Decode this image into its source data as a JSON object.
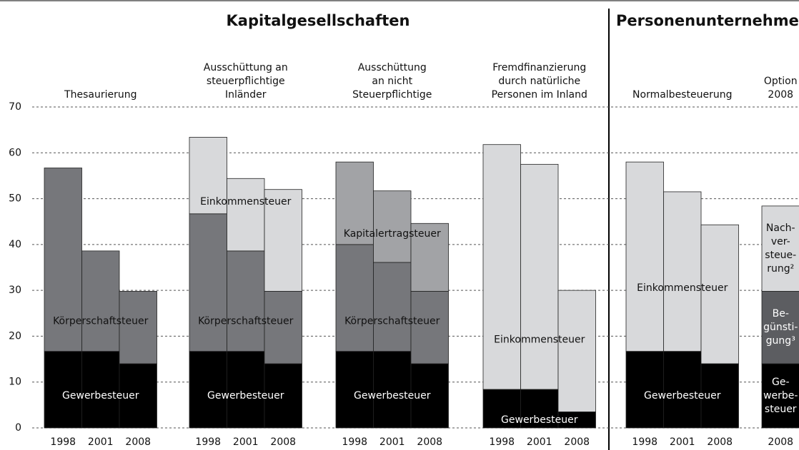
{
  "chart_data": {
    "type": "grouped_stacked_bar",
    "ylim": [
      0,
      70
    ],
    "yticks": [
      0,
      10,
      20,
      30,
      40,
      50,
      60,
      70
    ],
    "grid": true,
    "sections": [
      {
        "title": "Kapitalgesellschaften",
        "groups": [
          {
            "name_lines": [
              "Thesaurierung"
            ],
            "categories": [
              "1998",
              "2001",
              "2008"
            ],
            "series": [
              {
                "label": [
                  "Gewerbesteuer"
                ],
                "color": "#000000",
                "values": [
                  16.7,
                  16.7,
                  14.0
                ]
              },
              {
                "label": [
                  "Körperschaftsteuer"
                ],
                "color": "#76777b",
                "values": [
                  40.0,
                  21.9,
                  15.8
                ]
              }
            ]
          },
          {
            "name_lines": [
              "Ausschüttung an",
              "steuerpflichtige",
              "Inländer"
            ],
            "categories": [
              "1998",
              "2001",
              "2008"
            ],
            "series": [
              {
                "label": [
                  "Gewerbesteuer"
                ],
                "color": "#000000",
                "values": [
                  16.7,
                  16.7,
                  14.0
                ]
              },
              {
                "label": [
                  "Körperschaftsteuer"
                ],
                "color": "#76777b",
                "values": [
                  30.0,
                  21.9,
                  15.8
                ]
              },
              {
                "label": [
                  "Einkommensteuer"
                ],
                "color": "#d8d9db",
                "values": [
                  16.7,
                  15.8,
                  22.2
                ]
              }
            ]
          },
          {
            "name_lines": [
              "Ausschüttung",
              "an nicht",
              "Steuerpflichtige"
            ],
            "categories": [
              "1998",
              "2001",
              "2008"
            ],
            "series": [
              {
                "label": [
                  "Gewerbesteuer"
                ],
                "color": "#000000",
                "values": [
                  16.7,
                  16.7,
                  14.0
                ]
              },
              {
                "label": [
                  "Körperschaftsteuer"
                ],
                "color": "#76777b",
                "values": [
                  23.3,
                  19.4,
                  15.8
                ]
              },
              {
                "label": [
                  "Kapitalertragsteuer"
                ],
                "color": "#a2a3a6",
                "values": [
                  18.0,
                  15.6,
                  14.8
                ]
              }
            ]
          },
          {
            "name_lines": [
              "Fremdfinanzierung",
              "durch natürliche",
              "Personen im Inland"
            ],
            "categories": [
              "1998",
              "2001",
              "2008"
            ],
            "series": [
              {
                "label": [
                  "Gewerbesteuer"
                ],
                "color": "#000000",
                "values": [
                  8.4,
                  8.4,
                  3.5
                ]
              },
              {
                "label": [
                  "Einkommensteuer"
                ],
                "color": "#d8d9db",
                "values": [
                  53.4,
                  49.1,
                  26.5
                ]
              }
            ]
          }
        ]
      },
      {
        "title": "Personenunternehmen",
        "groups": [
          {
            "name_lines": [
              "Normalbesteuerung"
            ],
            "categories": [
              "1998",
              "2001",
              "2008"
            ],
            "series": [
              {
                "label": [
                  "Gewerbesteuer"
                ],
                "color": "#000000",
                "values": [
                  16.7,
                  16.7,
                  14.0
                ]
              },
              {
                "label": [
                  "Einkommensteuer"
                ],
                "color": "#d8d9db",
                "values": [
                  41.3,
                  34.8,
                  30.3
                ]
              }
            ]
          },
          {
            "name_lines": [
              "Option",
              "2008"
            ],
            "categories": [
              "2008"
            ],
            "series": [
              {
                "label": [
                  "Ge-",
                  "werbe-",
                  "steuer"
                ],
                "color": "#000000",
                "values": [
                  14.0
                ]
              },
              {
                "label": [
                  "Be-",
                  "günsti-",
                  "gung³"
                ],
                "color": "#5c5d61",
                "values": [
                  15.8
                ]
              },
              {
                "label": [
                  "Nach-",
                  "ver-",
                  "steue-",
                  "rung²"
                ],
                "color": "#d8d9db",
                "values": [
                  18.6
                ]
              }
            ]
          }
        ]
      }
    ]
  }
}
